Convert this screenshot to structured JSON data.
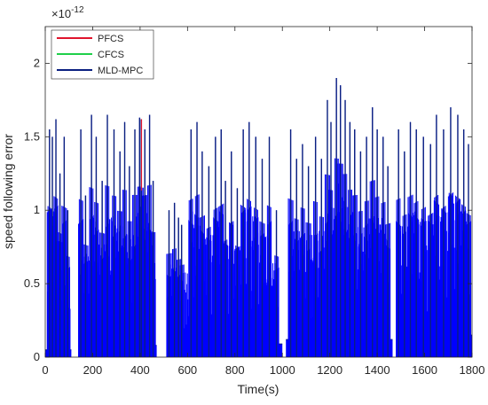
{
  "chart_data": {
    "type": "line",
    "title": "",
    "xlabel": "Time(s)",
    "ylabel": "speed following error",
    "y_exponent_label": "×10",
    "y_exponent_power": "-12",
    "xlim": [
      0,
      1800
    ],
    "ylim": [
      0,
      2.25
    ],
    "x_ticks": [
      0,
      200,
      400,
      600,
      800,
      1000,
      1200,
      1400,
      1600,
      1800
    ],
    "y_ticks": [
      0,
      0.5,
      1,
      1.5,
      2
    ],
    "x_tick_labels": [
      "0",
      "200",
      "400",
      "600",
      "800",
      "1000",
      "1200",
      "1400",
      "1600",
      "1800"
    ],
    "y_tick_labels": [
      "0",
      "0.5",
      "1",
      "1.5",
      "2"
    ],
    "grid": false,
    "legend_position": "top-left",
    "series": [
      {
        "name": "PFCS",
        "color": "#e0142c"
      },
      {
        "name": "CFCS",
        "color": "#1fcf4a"
      },
      {
        "name": "MLD-MPC",
        "color": "#0a1f80"
      }
    ],
    "fill_color": "#0000ff",
    "peaks": [
      [
        18,
        1.55
      ],
      [
        30,
        1.5
      ],
      [
        45,
        1.62
      ],
      [
        62,
        1.25
      ],
      [
        80,
        1.5
      ],
      [
        95,
        1.0
      ],
      [
        150,
        1.55
      ],
      [
        170,
        1.1
      ],
      [
        195,
        1.65
      ],
      [
        215,
        1.5
      ],
      [
        240,
        1.2
      ],
      [
        262,
        1.65
      ],
      [
        290,
        1.55
      ],
      [
        315,
        1.4
      ],
      [
        335,
        1.6
      ],
      [
        355,
        1.3
      ],
      [
        378,
        1.55
      ],
      [
        398,
        1.63
      ],
      [
        405,
        1.62
      ],
      [
        420,
        1.55
      ],
      [
        440,
        1.65
      ],
      [
        455,
        1.2
      ],
      [
        522,
        1.0
      ],
      [
        545,
        1.05
      ],
      [
        562,
        0.95
      ],
      [
        575,
        0.9
      ],
      [
        615,
        1.55
      ],
      [
        640,
        1.6
      ],
      [
        662,
        1.4
      ],
      [
        690,
        1.3
      ],
      [
        718,
        1.5
      ],
      [
        742,
        1.55
      ],
      [
        760,
        1.2
      ],
      [
        785,
        1.4
      ],
      [
        810,
        1.15
      ],
      [
        835,
        1.55
      ],
      [
        860,
        1.6
      ],
      [
        888,
        1.5
      ],
      [
        915,
        1.35
      ],
      [
        945,
        1.5
      ],
      [
        975,
        1.0
      ],
      [
        1035,
        1.55
      ],
      [
        1060,
        1.35
      ],
      [
        1085,
        1.45
      ],
      [
        1110,
        1.3
      ],
      [
        1140,
        1.5
      ],
      [
        1165,
        1.35
      ],
      [
        1190,
        1.75
      ],
      [
        1205,
        1.6
      ],
      [
        1228,
        1.9
      ],
      [
        1245,
        1.85
      ],
      [
        1265,
        1.75
      ],
      [
        1285,
        1.6
      ],
      [
        1305,
        1.55
      ],
      [
        1330,
        1.4
      ],
      [
        1355,
        1.5
      ],
      [
        1380,
        1.7
      ],
      [
        1400,
        1.55
      ],
      [
        1425,
        1.5
      ],
      [
        1445,
        1.3
      ],
      [
        1490,
        1.55
      ],
      [
        1515,
        1.4
      ],
      [
        1540,
        1.6
      ],
      [
        1565,
        1.55
      ],
      [
        1595,
        1.5
      ],
      [
        1625,
        1.45
      ],
      [
        1650,
        1.65
      ],
      [
        1680,
        1.55
      ],
      [
        1710,
        1.7
      ],
      [
        1740,
        1.65
      ],
      [
        1765,
        1.55
      ],
      [
        1785,
        1.45
      ]
    ],
    "baseline_segments": [
      {
        "x": [
          0,
          110
        ],
        "level": 0.05
      },
      {
        "x": [
          140,
          470
        ],
        "level": 0.08
      },
      {
        "x": [
          515,
          582
        ],
        "level": 0.03
      },
      {
        "x": [
          600,
          1000
        ],
        "level": 0.09
      },
      {
        "x": [
          1015,
          1465
        ],
        "level": 0.12
      },
      {
        "x": [
          1480,
          1800
        ],
        "level": 0.15
      }
    ]
  }
}
